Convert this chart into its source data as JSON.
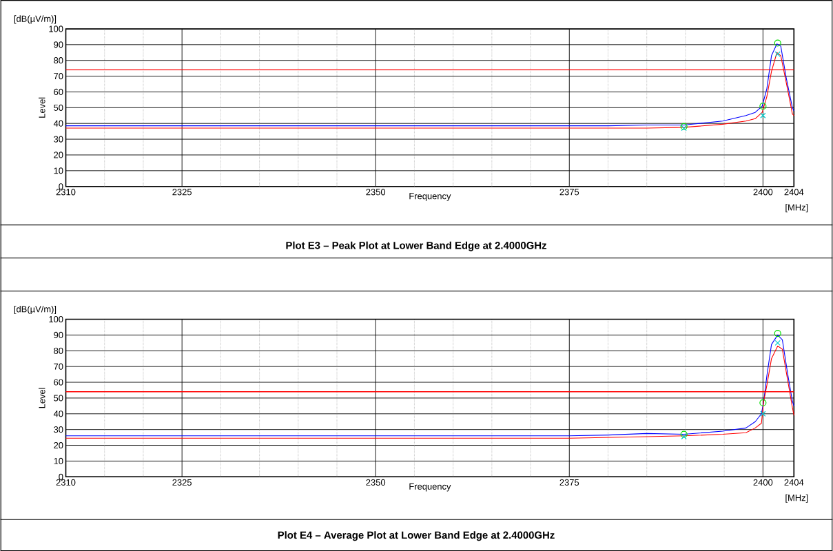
{
  "chart_data": [
    {
      "type": "line",
      "title": "Plot E3 – Peak Plot at Lower Band Edge at 2.4000GHz",
      "xlabel": "Frequency",
      "ylabel": "Level",
      "annotations": [
        "[dB(µV/m)]",
        "[MHz]"
      ],
      "x": [
        2310,
        2315,
        2320,
        2325,
        2330,
        2335,
        2340,
        2345,
        2350,
        2355,
        2360,
        2365,
        2370,
        2375,
        2380,
        2385,
        2389.8,
        2394.8,
        2397.8,
        2399,
        2399.9,
        2400.5,
        2401.1,
        2401.8,
        2402.3,
        2403,
        2403.8,
        2404
      ],
      "xlim": [
        2310,
        2404
      ],
      "ylim": [
        0,
        100
      ],
      "xticks": [
        2310,
        {
          "value": 2315,
          "label": null
        },
        {
          "value": 2320,
          "label": null
        },
        2325,
        {
          "value": 2330,
          "label": null
        },
        {
          "value": 2335,
          "label": null
        },
        {
          "value": 2340,
          "label": null
        },
        {
          "value": 2345,
          "label": null
        },
        2350,
        {
          "value": 2355,
          "label": null
        },
        {
          "value": 2360,
          "label": null
        },
        {
          "value": 2365,
          "label": null
        },
        {
          "value": 2370,
          "label": null
        },
        2375,
        {
          "value": 2380,
          "label": null
        },
        {
          "value": 2385,
          "label": null
        },
        {
          "value": 2390,
          "label": null
        },
        {
          "value": 2395,
          "label": null
        },
        2400,
        2404
      ],
      "yticks": [
        0,
        10,
        20,
        30,
        40,
        50,
        60,
        70,
        80,
        90,
        100
      ],
      "grid": true,
      "line_style": "solid",
      "ref_lines": [
        {
          "axis": "y",
          "value": 74,
          "color": "#ff0000"
        }
      ],
      "series": [
        {
          "color": "#0000ff",
          "values": [
            38.5,
            38.5,
            38.5,
            38.5,
            38.5,
            38.5,
            38.5,
            38.5,
            38.5,
            38.5,
            38.5,
            38.5,
            38.5,
            38.5,
            38.5,
            39,
            39,
            41.5,
            45,
            47,
            51,
            62,
            83,
            90.5,
            89,
            69,
            50,
            48
          ]
        },
        {
          "color": "#ff0000",
          "values": [
            37,
            37,
            37,
            37,
            37,
            37,
            37,
            37,
            37,
            37,
            37,
            37,
            37,
            37,
            37,
            37,
            37.5,
            39.5,
            41.5,
            43,
            47,
            57,
            73,
            85,
            83,
            66,
            46,
            45
          ]
        },
        {
          "type": "scatter",
          "marker": "circle",
          "color": "#00dd00",
          "x": [
            2389.8,
            2400,
            2401.9
          ],
          "values": [
            38,
            51,
            91
          ]
        },
        {
          "type": "scatter",
          "marker": "cross",
          "color": "#00cccc",
          "x": [
            2389.8,
            2400,
            2401.9
          ],
          "values": [
            37,
            45,
            84
          ]
        }
      ]
    },
    {
      "type": "line",
      "title": "Plot E4 – Average Plot at Lower Band Edge at 2.4000GHz",
      "xlabel": "Frequency",
      "ylabel": "Level",
      "annotations": [
        "[dB(µV/m)]",
        "[MHz]"
      ],
      "x": [
        2310,
        2315,
        2320,
        2325,
        2330,
        2335,
        2340,
        2345,
        2350,
        2355,
        2360,
        2365,
        2370,
        2375,
        2380,
        2385,
        2389.8,
        2394.8,
        2397.8,
        2399,
        2399.8,
        2400.1,
        2400.5,
        2401.1,
        2401.9,
        2402.5,
        2403.2,
        2403.8,
        2404
      ],
      "xlim": [
        2310,
        2404
      ],
      "ylim": [
        0,
        100
      ],
      "xticks": [
        2310,
        {
          "value": 2315,
          "label": null
        },
        {
          "value": 2320,
          "label": null
        },
        2325,
        {
          "value": 2330,
          "label": null
        },
        {
          "value": 2335,
          "label": null
        },
        {
          "value": 2340,
          "label": null
        },
        {
          "value": 2345,
          "label": null
        },
        2350,
        {
          "value": 2355,
          "label": null
        },
        {
          "value": 2360,
          "label": null
        },
        {
          "value": 2365,
          "label": null
        },
        {
          "value": 2370,
          "label": null
        },
        2375,
        {
          "value": 2380,
          "label": null
        },
        {
          "value": 2385,
          "label": null
        },
        {
          "value": 2390,
          "label": null
        },
        {
          "value": 2395,
          "label": null
        },
        2400,
        2404
      ],
      "yticks": [
        0,
        10,
        20,
        30,
        40,
        50,
        60,
        70,
        80,
        90,
        100
      ],
      "grid": true,
      "line_style": "solid",
      "ref_lines": [
        {
          "axis": "y",
          "value": 54,
          "color": "#ff0000"
        }
      ],
      "series": [
        {
          "color": "#0000ff",
          "values": [
            26,
            26,
            26,
            26,
            26,
            26,
            26,
            26,
            26,
            26,
            26,
            26,
            26,
            26,
            26.5,
            27.5,
            27,
            29,
            31,
            35,
            40,
            48,
            64,
            84,
            90,
            87,
            65,
            48,
            45
          ]
        },
        {
          "color": "#ff0000",
          "values": [
            24.5,
            24.5,
            24.5,
            24.5,
            24.5,
            24.5,
            24.5,
            24.5,
            24.5,
            24.5,
            24.5,
            24.5,
            24.5,
            24.5,
            25,
            25.5,
            26,
            27,
            28,
            31,
            34,
            48,
            58,
            75,
            83,
            81,
            61,
            44,
            39
          ]
        },
        {
          "type": "scatter",
          "marker": "circle",
          "color": "#00dd00",
          "x": [
            2389.8,
            2400,
            2401.9
          ],
          "values": [
            27,
            47,
            91
          ]
        },
        {
          "type": "scatter",
          "marker": "cross",
          "color": "#00cccc",
          "x": [
            2389.8,
            2400,
            2401.9
          ],
          "values": [
            25.5,
            40,
            85
          ]
        }
      ]
    }
  ]
}
